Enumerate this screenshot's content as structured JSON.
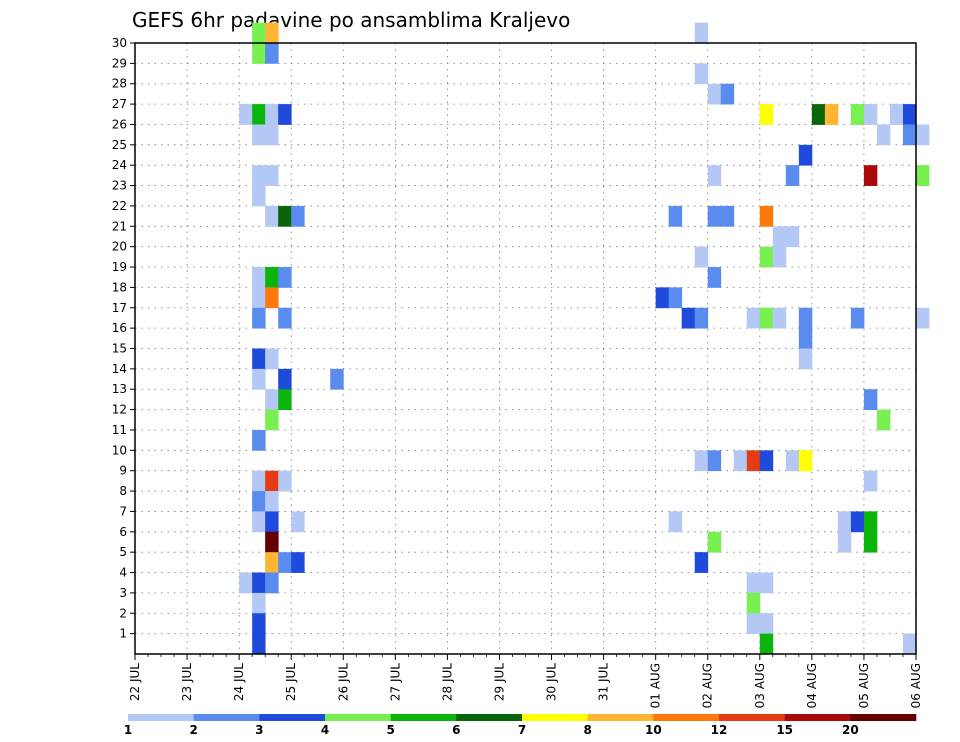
{
  "chart_data": {
    "type": "heatmap",
    "title": "GEFS 6hr padavine po ansamblima Kraljevo",
    "x_ticks": [
      "22 JUL",
      "23 JUL",
      "24 JUL",
      "25 JUL",
      "26 JUL",
      "27 JUL",
      "28 JUL",
      "29 JUL",
      "30 JUL",
      "31 JUL",
      "01 AUG",
      "02 AUG",
      "03 AUG",
      "04 AUG",
      "05 AUG",
      "06 AUG"
    ],
    "y_ticks": [
      "1",
      "2",
      "3",
      "4",
      "5",
      "6",
      "7",
      "8",
      "9",
      "10",
      "11",
      "12",
      "13",
      "14",
      "15",
      "16",
      "17",
      "18",
      "19",
      "20",
      "21",
      "22",
      "23",
      "24",
      "25",
      "26",
      "27",
      "28",
      "29",
      "30"
    ],
    "y_range": [
      0,
      30
    ],
    "step_hours": 6,
    "grid": true,
    "levels": [
      "1",
      "2",
      "3",
      "4",
      "5",
      "6",
      "7",
      "8",
      "10",
      "12",
      "15",
      "20"
    ],
    "colors": [
      "#b4c8f5",
      "#5a8cf0",
      "#1e4bdc",
      "#78f050",
      "#0ab40a",
      "#0a640a",
      "#ffff00",
      "#ffb432",
      "#ff780a",
      "#e63c14",
      "#aa0a0a",
      "#640000"
    ],
    "cells_note_format": "[step_index_from_22JUL_00Z, member, color_class]",
    "cells": [
      [
        9,
        30,
        3
      ],
      [
        10,
        30,
        7
      ],
      [
        9,
        29,
        3
      ],
      [
        10,
        29,
        1
      ],
      [
        8,
        26,
        0
      ],
      [
        9,
        26,
        4
      ],
      [
        10,
        26,
        0
      ],
      [
        11,
        26,
        2
      ],
      [
        9,
        25,
        0
      ],
      [
        10,
        25,
        0
      ],
      [
        9,
        23,
        0
      ],
      [
        10,
        23,
        0
      ],
      [
        9,
        22,
        0
      ],
      [
        10,
        21,
        0
      ],
      [
        11,
        21,
        5
      ],
      [
        12,
        21,
        1
      ],
      [
        9,
        18,
        0
      ],
      [
        10,
        18,
        4
      ],
      [
        11,
        18,
        1
      ],
      [
        9,
        17,
        0
      ],
      [
        10,
        17,
        8
      ],
      [
        9,
        16,
        1
      ],
      [
        11,
        16,
        1
      ],
      [
        9,
        14,
        2
      ],
      [
        10,
        14,
        0
      ],
      [
        9,
        13,
        0
      ],
      [
        11,
        13,
        2
      ],
      [
        15,
        13,
        1
      ],
      [
        10,
        12,
        0
      ],
      [
        11,
        12,
        4
      ],
      [
        10,
        11,
        3
      ],
      [
        9,
        10,
        1
      ],
      [
        9,
        8,
        0
      ],
      [
        10,
        8,
        9
      ],
      [
        11,
        8,
        0
      ],
      [
        9,
        7,
        1
      ],
      [
        10,
        7,
        0
      ],
      [
        9,
        6,
        0
      ],
      [
        10,
        6,
        2
      ],
      [
        12,
        6,
        0
      ],
      [
        10,
        5,
        11
      ],
      [
        10,
        4,
        7
      ],
      [
        11,
        4,
        1
      ],
      [
        12,
        4,
        2
      ],
      [
        8,
        3,
        0
      ],
      [
        9,
        3,
        2
      ],
      [
        10,
        3,
        1
      ],
      [
        9,
        2,
        0
      ],
      [
        9,
        1,
        2
      ],
      [
        43,
        30,
        0
      ],
      [
        43,
        28,
        0
      ],
      [
        44,
        27,
        0
      ],
      [
        45,
        27,
        1
      ],
      [
        44,
        23,
        0
      ],
      [
        41,
        21,
        1
      ],
      [
        44,
        21,
        1
      ],
      [
        45,
        21,
        1
      ],
      [
        43,
        19,
        0
      ],
      [
        44,
        18,
        1
      ],
      [
        40,
        17,
        2
      ],
      [
        41,
        17,
        1
      ],
      [
        42,
        16,
        2
      ],
      [
        43,
        16,
        1
      ],
      [
        43,
        9,
        0
      ],
      [
        44,
        9,
        1
      ],
      [
        41,
        6,
        0
      ],
      [
        44,
        5,
        3
      ],
      [
        43,
        4,
        2
      ],
      [
        48,
        26,
        6
      ],
      [
        52,
        26,
        5
      ],
      [
        53,
        26,
        7
      ],
      [
        55,
        26,
        3
      ],
      [
        56,
        26,
        0
      ],
      [
        58,
        26,
        0
      ],
      [
        59,
        26,
        2
      ],
      [
        57,
        25,
        0
      ],
      [
        59,
        25,
        1
      ],
      [
        60,
        25,
        0
      ],
      [
        51,
        24,
        2
      ],
      [
        50,
        23,
        1
      ],
      [
        56,
        23,
        10
      ],
      [
        60,
        23,
        3
      ],
      [
        48,
        21,
        8
      ],
      [
        49,
        20,
        0
      ],
      [
        50,
        20,
        0
      ],
      [
        48,
        19,
        3
      ],
      [
        49,
        19,
        0
      ],
      [
        47,
        16,
        0
      ],
      [
        48,
        16,
        3
      ],
      [
        49,
        16,
        0
      ],
      [
        51,
        16,
        1
      ],
      [
        55,
        16,
        1
      ],
      [
        60,
        16,
        0
      ],
      [
        51,
        15,
        1
      ],
      [
        51,
        14,
        0
      ],
      [
        56,
        12,
        1
      ],
      [
        57,
        11,
        3
      ],
      [
        46,
        9,
        0
      ],
      [
        47,
        9,
        9
      ],
      [
        48,
        9,
        2
      ],
      [
        50,
        9,
        0
      ],
      [
        51,
        9,
        6
      ],
      [
        56,
        8,
        0
      ],
      [
        54,
        6,
        0
      ],
      [
        55,
        6,
        2
      ],
      [
        56,
        6,
        4
      ],
      [
        54,
        5,
        0
      ],
      [
        56,
        5,
        4
      ],
      [
        47,
        3,
        0
      ],
      [
        48,
        3,
        0
      ],
      [
        47,
        2,
        3
      ],
      [
        47,
        1,
        0
      ],
      [
        48,
        1,
        0
      ],
      [
        48,
        0,
        4
      ],
      [
        59,
        0,
        0
      ],
      [
        9,
        0,
        2
      ]
    ]
  }
}
